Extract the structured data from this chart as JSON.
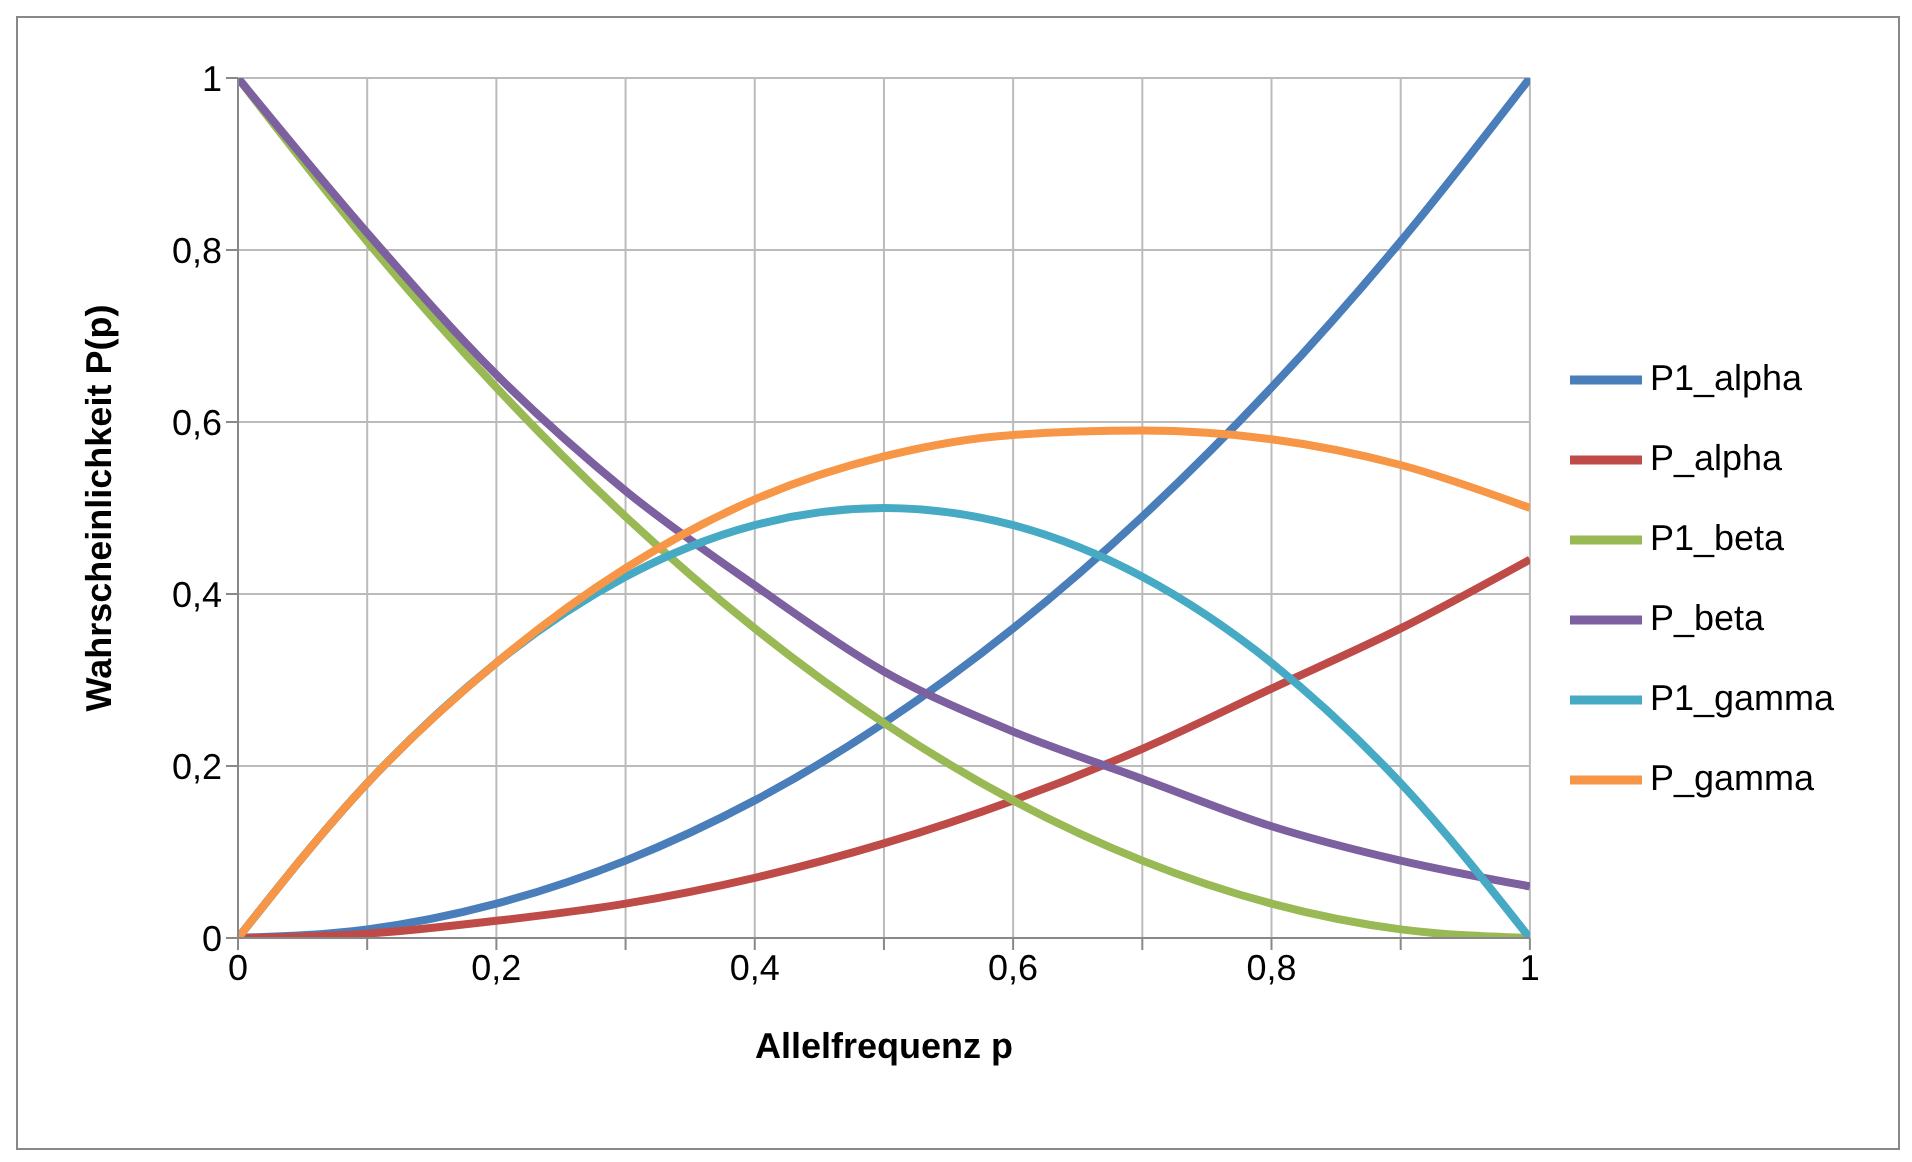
{
  "chart_data": {
    "type": "line",
    "xlabel": "Allelfrequenz p",
    "ylabel": "Wahrscheinlichkeit P(p)",
    "x": [
      0,
      0.1,
      0.2,
      0.3,
      0.4,
      0.5,
      0.6,
      0.7,
      0.8,
      0.9,
      1
    ],
    "series": [
      {
        "name": "P1_alpha",
        "color": "#4a7ebb",
        "values": [
          0,
          0.01,
          0.04,
          0.09,
          0.16,
          0.25,
          0.36,
          0.49,
          0.64,
          0.81,
          1
        ]
      },
      {
        "name": "P_alpha",
        "color": "#be4b48",
        "values": [
          0,
          0.005,
          0.02,
          0.04,
          0.07,
          0.11,
          0.16,
          0.22,
          0.29,
          0.36,
          0.44
        ]
      },
      {
        "name": "P1_beta",
        "color": "#98b954",
        "values": [
          1,
          0.81,
          0.64,
          0.49,
          0.36,
          0.25,
          0.16,
          0.09,
          0.04,
          0.01,
          0
        ]
      },
      {
        "name": "P_beta",
        "color": "#7d60a0",
        "values": [
          1,
          0.82,
          0.655,
          0.52,
          0.41,
          0.31,
          0.24,
          0.185,
          0.13,
          0.09,
          0.06
        ]
      },
      {
        "name": "P1_gamma",
        "color": "#46aac5",
        "values": [
          0,
          0.18,
          0.32,
          0.42,
          0.48,
          0.5,
          0.48,
          0.42,
          0.32,
          0.18,
          0
        ]
      },
      {
        "name": "P_gamma",
        "color": "#f79646",
        "values": [
          0,
          0.18,
          0.32,
          0.43,
          0.51,
          0.56,
          0.585,
          0.59,
          0.58,
          0.55,
          0.5
        ]
      }
    ],
    "xlim": [
      0,
      1
    ],
    "xticks": [
      0,
      {
        "value": 0.1,
        "label": null
      },
      {
        "value": 0.2,
        "label": "0,2"
      },
      {
        "value": 0.3,
        "label": null
      },
      {
        "value": 0.4,
        "label": "0,4"
      },
      {
        "value": 0.5,
        "label": null
      },
      {
        "value": 0.6,
        "label": "0,6"
      },
      {
        "value": 0.7,
        "label": null
      },
      {
        "value": 0.8,
        "label": "0,8"
      },
      {
        "value": 0.9,
        "label": null
      },
      1
    ],
    "ylim": [
      0,
      1
    ],
    "yticks": [
      0,
      {
        "value": 0.2,
        "label": "0,2"
      },
      {
        "value": 0.4,
        "label": "0,4"
      },
      {
        "value": 0.6,
        "label": "0,6"
      },
      {
        "value": 0.8,
        "label": "0,8"
      },
      1
    ],
    "grid": true,
    "legend": "right",
    "marker": "none",
    "line_style": "solid"
  }
}
